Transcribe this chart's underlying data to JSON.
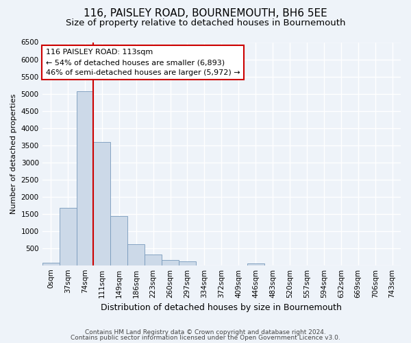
{
  "title1": "116, PAISLEY ROAD, BOURNEMOUTH, BH6 5EE",
  "title2": "Size of property relative to detached houses in Bournemouth",
  "xlabel": "Distribution of detached houses by size in Bournemouth",
  "ylabel": "Number of detached properties",
  "bin_labels": [
    "0sqm",
    "37sqm",
    "74sqm",
    "111sqm",
    "149sqm",
    "186sqm",
    "223sqm",
    "260sqm",
    "297sqm",
    "334sqm",
    "372sqm",
    "409sqm",
    "446sqm",
    "483sqm",
    "520sqm",
    "557sqm",
    "594sqm",
    "632sqm",
    "669sqm",
    "706sqm",
    "743sqm"
  ],
  "bar_values": [
    80,
    1670,
    5080,
    3600,
    1430,
    620,
    310,
    155,
    120,
    0,
    0,
    0,
    60,
    0,
    0,
    0,
    0,
    0,
    0,
    0,
    0
  ],
  "bar_color": "#ccd9e8",
  "bar_edge_color": "#7799bb",
  "property_line_bin": 3,
  "annotation_line1": "116 PAISLEY ROAD: 113sqm",
  "annotation_line2": "← 54% of detached houses are smaller (6,893)",
  "annotation_line3": "46% of semi-detached houses are larger (5,972) →",
  "annotation_box_color": "white",
  "annotation_box_edge_color": "#cc0000",
  "property_line_color": "#cc0000",
  "ylim": [
    0,
    6500
  ],
  "yticks": [
    0,
    500,
    1000,
    1500,
    2000,
    2500,
    3000,
    3500,
    4000,
    4500,
    5000,
    5500,
    6000,
    6500
  ],
  "footer1": "Contains HM Land Registry data © Crown copyright and database right 2024.",
  "footer2": "Contains public sector information licensed under the Open Government Licence v3.0.",
  "bg_color": "#eef3f9",
  "grid_color": "white",
  "title1_fontsize": 11,
  "title2_fontsize": 9.5,
  "xlabel_fontsize": 9,
  "ylabel_fontsize": 8,
  "annot_fontsize": 8,
  "tick_fontsize": 7.5,
  "footer_fontsize": 6.5
}
